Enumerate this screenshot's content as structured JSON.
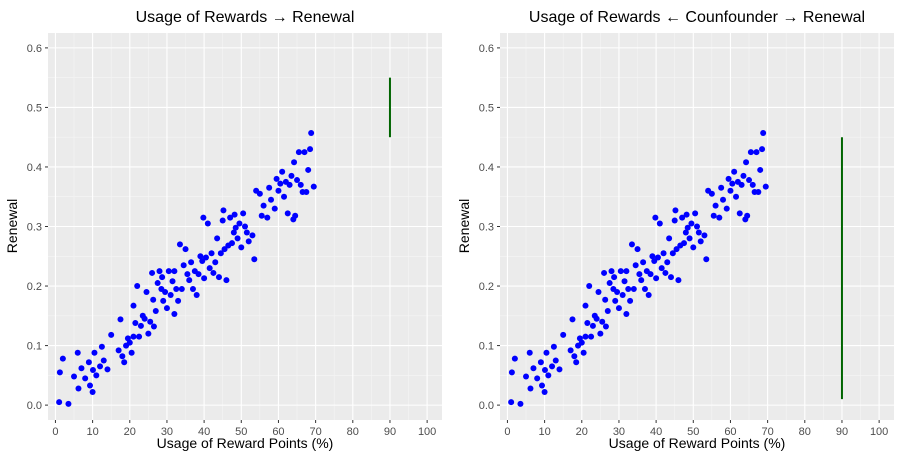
{
  "chart_data": [
    {
      "type": "scatter",
      "title": "Usage of Rewards → Renewal",
      "xlabel": "Usage of Reward Points (%)",
      "ylabel": "Renewal",
      "xlim": [
        -2,
        104
      ],
      "ylim": [
        -0.025,
        0.625
      ],
      "x_ticks": [
        0,
        10,
        20,
        30,
        40,
        50,
        60,
        70,
        80,
        90,
        100
      ],
      "y_ticks": [
        0.0,
        0.1,
        0.2,
        0.3,
        0.4,
        0.5,
        0.6
      ],
      "x_tick_labels": [
        "0",
        "10",
        "20",
        "30",
        "40",
        "50",
        "60",
        "70",
        "80",
        "90",
        "100"
      ],
      "y_tick_labels": [
        "0.0",
        "0.1",
        "0.2",
        "0.3",
        "0.4",
        "0.5",
        "0.6"
      ],
      "point_color": "#0000ff",
      "segment": {
        "x": 90,
        "y_start": 0.45,
        "y_end": 0.55,
        "color": "#006400"
      },
      "points": [
        [
          1.0,
          0.005
        ],
        [
          1.2,
          0.055
        ],
        [
          2.0,
          0.078
        ],
        [
          3.5,
          0.002
        ],
        [
          5.0,
          0.048
        ],
        [
          6.0,
          0.088
        ],
        [
          6.2,
          0.028
        ],
        [
          7.0,
          0.062
        ],
        [
          8.0,
          0.045
        ],
        [
          9.0,
          0.072
        ],
        [
          9.3,
          0.033
        ],
        [
          10.0,
          0.022
        ],
        [
          10.1,
          0.059
        ],
        [
          10.5,
          0.088
        ],
        [
          11.0,
          0.05
        ],
        [
          12.0,
          0.065
        ],
        [
          12.5,
          0.098
        ],
        [
          13.0,
          0.075
        ],
        [
          14.0,
          0.06
        ],
        [
          15.0,
          0.118
        ],
        [
          17.0,
          0.092
        ],
        [
          17.5,
          0.144
        ],
        [
          18.0,
          0.082
        ],
        [
          18.5,
          0.072
        ],
        [
          19.0,
          0.1
        ],
        [
          19.5,
          0.112
        ],
        [
          20.0,
          0.105
        ],
        [
          20.5,
          0.088
        ],
        [
          21.0,
          0.167
        ],
        [
          21.0,
          0.115
        ],
        [
          21.5,
          0.138
        ],
        [
          22.0,
          0.2
        ],
        [
          22.5,
          0.115
        ],
        [
          23.0,
          0.133
        ],
        [
          23.5,
          0.15
        ],
        [
          24.0,
          0.145
        ],
        [
          24.5,
          0.19
        ],
        [
          25.0,
          0.12
        ],
        [
          25.5,
          0.14
        ],
        [
          26.0,
          0.222
        ],
        [
          26.3,
          0.177
        ],
        [
          26.5,
          0.132
        ],
        [
          27.0,
          0.158
        ],
        [
          27.5,
          0.205
        ],
        [
          28.0,
          0.225
        ],
        [
          28.5,
          0.195
        ],
        [
          28.7,
          0.215
        ],
        [
          29.0,
          0.175
        ],
        [
          29.5,
          0.19
        ],
        [
          30.0,
          0.163
        ],
        [
          30.5,
          0.225
        ],
        [
          31.0,
          0.185
        ],
        [
          31.5,
          0.208
        ],
        [
          32.0,
          0.153
        ],
        [
          32.0,
          0.225
        ],
        [
          32.5,
          0.195
        ],
        [
          33.0,
          0.175
        ],
        [
          33.5,
          0.27
        ],
        [
          34.0,
          0.195
        ],
        [
          34.5,
          0.235
        ],
        [
          35.0,
          0.262
        ],
        [
          35.5,
          0.22
        ],
        [
          36.0,
          0.21
        ],
        [
          36.5,
          0.24
        ],
        [
          37.0,
          0.195
        ],
        [
          37.5,
          0.225
        ],
        [
          38.0,
          0.185
        ],
        [
          38.5,
          0.22
        ],
        [
          39.0,
          0.25
        ],
        [
          39.5,
          0.242
        ],
        [
          39.8,
          0.315
        ],
        [
          40.0,
          0.213
        ],
        [
          40.5,
          0.248
        ],
        [
          41.0,
          0.305
        ],
        [
          41.5,
          0.23
        ],
        [
          42.0,
          0.255
        ],
        [
          42.5,
          0.222
        ],
        [
          43.0,
          0.24
        ],
        [
          43.5,
          0.28
        ],
        [
          44.0,
          0.215
        ],
        [
          44.5,
          0.255
        ],
        [
          45.0,
          0.31
        ],
        [
          45.2,
          0.327
        ],
        [
          45.5,
          0.262
        ],
        [
          46.0,
          0.21
        ],
        [
          46.5,
          0.268
        ],
        [
          47.0,
          0.315
        ],
        [
          47.5,
          0.272
        ],
        [
          48.0,
          0.29
        ],
        [
          48.2,
          0.32
        ],
        [
          48.5,
          0.298
        ],
        [
          49.0,
          0.28
        ],
        [
          49.5,
          0.305
        ],
        [
          50.0,
          0.265
        ],
        [
          50.5,
          0.322
        ],
        [
          51.0,
          0.3
        ],
        [
          51.5,
          0.29
        ],
        [
          52.0,
          0.275
        ],
        [
          53.0,
          0.285
        ],
        [
          53.5,
          0.245
        ],
        [
          54.0,
          0.36
        ],
        [
          55.0,
          0.355
        ],
        [
          55.5,
          0.318
        ],
        [
          56.0,
          0.335
        ],
        [
          57.0,
          0.315
        ],
        [
          57.5,
          0.365
        ],
        [
          58.0,
          0.345
        ],
        [
          59.0,
          0.33
        ],
        [
          59.5,
          0.38
        ],
        [
          60.0,
          0.36
        ],
        [
          60.5,
          0.372
        ],
        [
          61.0,
          0.392
        ],
        [
          61.5,
          0.35
        ],
        [
          62.0,
          0.375
        ],
        [
          62.5,
          0.322
        ],
        [
          63.0,
          0.37
        ],
        [
          63.5,
          0.385
        ],
        [
          64.0,
          0.312
        ],
        [
          64.2,
          0.408
        ],
        [
          64.5,
          0.318
        ],
        [
          65.0,
          0.378
        ],
        [
          65.5,
          0.425
        ],
        [
          66.0,
          0.37
        ],
        [
          66.5,
          0.358
        ],
        [
          67.0,
          0.425
        ],
        [
          67.5,
          0.358
        ],
        [
          68.0,
          0.395
        ],
        [
          68.5,
          0.43
        ],
        [
          68.8,
          0.457
        ],
        [
          69.5,
          0.367
        ]
      ]
    },
    {
      "type": "scatter",
      "title": "Usage of Rewards ← Counfounder → Renewal",
      "xlabel": "Usage of Reward Points (%)",
      "ylabel": "Renewal",
      "xlim": [
        -2,
        104
      ],
      "ylim": [
        -0.025,
        0.625
      ],
      "x_ticks": [
        0,
        10,
        20,
        30,
        40,
        50,
        60,
        70,
        80,
        90,
        100
      ],
      "y_ticks": [
        0.0,
        0.1,
        0.2,
        0.3,
        0.4,
        0.5,
        0.6
      ],
      "x_tick_labels": [
        "0",
        "10",
        "20",
        "30",
        "40",
        "50",
        "60",
        "70",
        "80",
        "90",
        "100"
      ],
      "y_tick_labels": [
        "0.0",
        "0.1",
        "0.2",
        "0.3",
        "0.4",
        "0.5",
        "0.6"
      ],
      "point_color": "#0000ff",
      "segment": {
        "x": 90,
        "y_start": 0.01,
        "y_end": 0.45,
        "color": "#006400"
      },
      "points": [
        [
          1.0,
          0.005
        ],
        [
          1.2,
          0.055
        ],
        [
          2.0,
          0.078
        ],
        [
          3.5,
          0.002
        ],
        [
          5.0,
          0.048
        ],
        [
          6.0,
          0.088
        ],
        [
          6.2,
          0.028
        ],
        [
          7.0,
          0.062
        ],
        [
          8.0,
          0.045
        ],
        [
          9.0,
          0.072
        ],
        [
          9.3,
          0.033
        ],
        [
          10.0,
          0.022
        ],
        [
          10.1,
          0.059
        ],
        [
          10.5,
          0.088
        ],
        [
          11.0,
          0.05
        ],
        [
          12.0,
          0.065
        ],
        [
          12.5,
          0.098
        ],
        [
          13.0,
          0.075
        ],
        [
          14.0,
          0.06
        ],
        [
          15.0,
          0.118
        ],
        [
          17.0,
          0.092
        ],
        [
          17.5,
          0.144
        ],
        [
          18.0,
          0.082
        ],
        [
          18.5,
          0.072
        ],
        [
          19.0,
          0.1
        ],
        [
          19.5,
          0.112
        ],
        [
          20.0,
          0.105
        ],
        [
          20.5,
          0.088
        ],
        [
          21.0,
          0.167
        ],
        [
          21.0,
          0.115
        ],
        [
          21.5,
          0.138
        ],
        [
          22.0,
          0.2
        ],
        [
          22.5,
          0.115
        ],
        [
          23.0,
          0.133
        ],
        [
          23.5,
          0.15
        ],
        [
          24.0,
          0.145
        ],
        [
          24.5,
          0.19
        ],
        [
          25.0,
          0.12
        ],
        [
          25.5,
          0.14
        ],
        [
          26.0,
          0.222
        ],
        [
          26.3,
          0.177
        ],
        [
          26.5,
          0.132
        ],
        [
          27.0,
          0.158
        ],
        [
          27.5,
          0.205
        ],
        [
          28.0,
          0.225
        ],
        [
          28.5,
          0.195
        ],
        [
          28.7,
          0.215
        ],
        [
          29.0,
          0.175
        ],
        [
          29.5,
          0.19
        ],
        [
          30.0,
          0.163
        ],
        [
          30.5,
          0.225
        ],
        [
          31.0,
          0.185
        ],
        [
          31.5,
          0.208
        ],
        [
          32.0,
          0.153
        ],
        [
          32.0,
          0.225
        ],
        [
          32.5,
          0.195
        ],
        [
          33.0,
          0.175
        ],
        [
          33.5,
          0.27
        ],
        [
          34.0,
          0.195
        ],
        [
          34.5,
          0.235
        ],
        [
          35.0,
          0.262
        ],
        [
          35.5,
          0.22
        ],
        [
          36.0,
          0.21
        ],
        [
          36.5,
          0.24
        ],
        [
          37.0,
          0.195
        ],
        [
          37.5,
          0.225
        ],
        [
          38.0,
          0.185
        ],
        [
          38.5,
          0.22
        ],
        [
          39.0,
          0.25
        ],
        [
          39.5,
          0.242
        ],
        [
          39.8,
          0.315
        ],
        [
          40.0,
          0.213
        ],
        [
          40.5,
          0.248
        ],
        [
          41.0,
          0.305
        ],
        [
          41.5,
          0.23
        ],
        [
          42.0,
          0.255
        ],
        [
          42.5,
          0.222
        ],
        [
          43.0,
          0.24
        ],
        [
          43.5,
          0.28
        ],
        [
          44.0,
          0.215
        ],
        [
          44.5,
          0.255
        ],
        [
          45.0,
          0.31
        ],
        [
          45.2,
          0.327
        ],
        [
          45.5,
          0.262
        ],
        [
          46.0,
          0.21
        ],
        [
          46.5,
          0.268
        ],
        [
          47.0,
          0.315
        ],
        [
          47.5,
          0.272
        ],
        [
          48.0,
          0.29
        ],
        [
          48.2,
          0.32
        ],
        [
          48.5,
          0.298
        ],
        [
          49.0,
          0.28
        ],
        [
          49.5,
          0.305
        ],
        [
          50.0,
          0.265
        ],
        [
          50.5,
          0.322
        ],
        [
          51.0,
          0.3
        ],
        [
          51.5,
          0.29
        ],
        [
          52.0,
          0.275
        ],
        [
          53.0,
          0.285
        ],
        [
          53.5,
          0.245
        ],
        [
          54.0,
          0.36
        ],
        [
          55.0,
          0.355
        ],
        [
          55.5,
          0.318
        ],
        [
          56.0,
          0.335
        ],
        [
          57.0,
          0.315
        ],
        [
          57.5,
          0.365
        ],
        [
          58.0,
          0.345
        ],
        [
          59.0,
          0.33
        ],
        [
          59.5,
          0.38
        ],
        [
          60.0,
          0.36
        ],
        [
          60.5,
          0.372
        ],
        [
          61.0,
          0.392
        ],
        [
          61.5,
          0.35
        ],
        [
          62.0,
          0.375
        ],
        [
          62.5,
          0.322
        ],
        [
          63.0,
          0.37
        ],
        [
          63.5,
          0.385
        ],
        [
          64.0,
          0.312
        ],
        [
          64.2,
          0.408
        ],
        [
          64.5,
          0.318
        ],
        [
          65.0,
          0.378
        ],
        [
          65.5,
          0.425
        ],
        [
          66.0,
          0.37
        ],
        [
          66.5,
          0.358
        ],
        [
          67.0,
          0.425
        ],
        [
          67.5,
          0.358
        ],
        [
          68.0,
          0.395
        ],
        [
          68.5,
          0.43
        ],
        [
          68.8,
          0.457
        ],
        [
          69.5,
          0.367
        ]
      ]
    }
  ]
}
